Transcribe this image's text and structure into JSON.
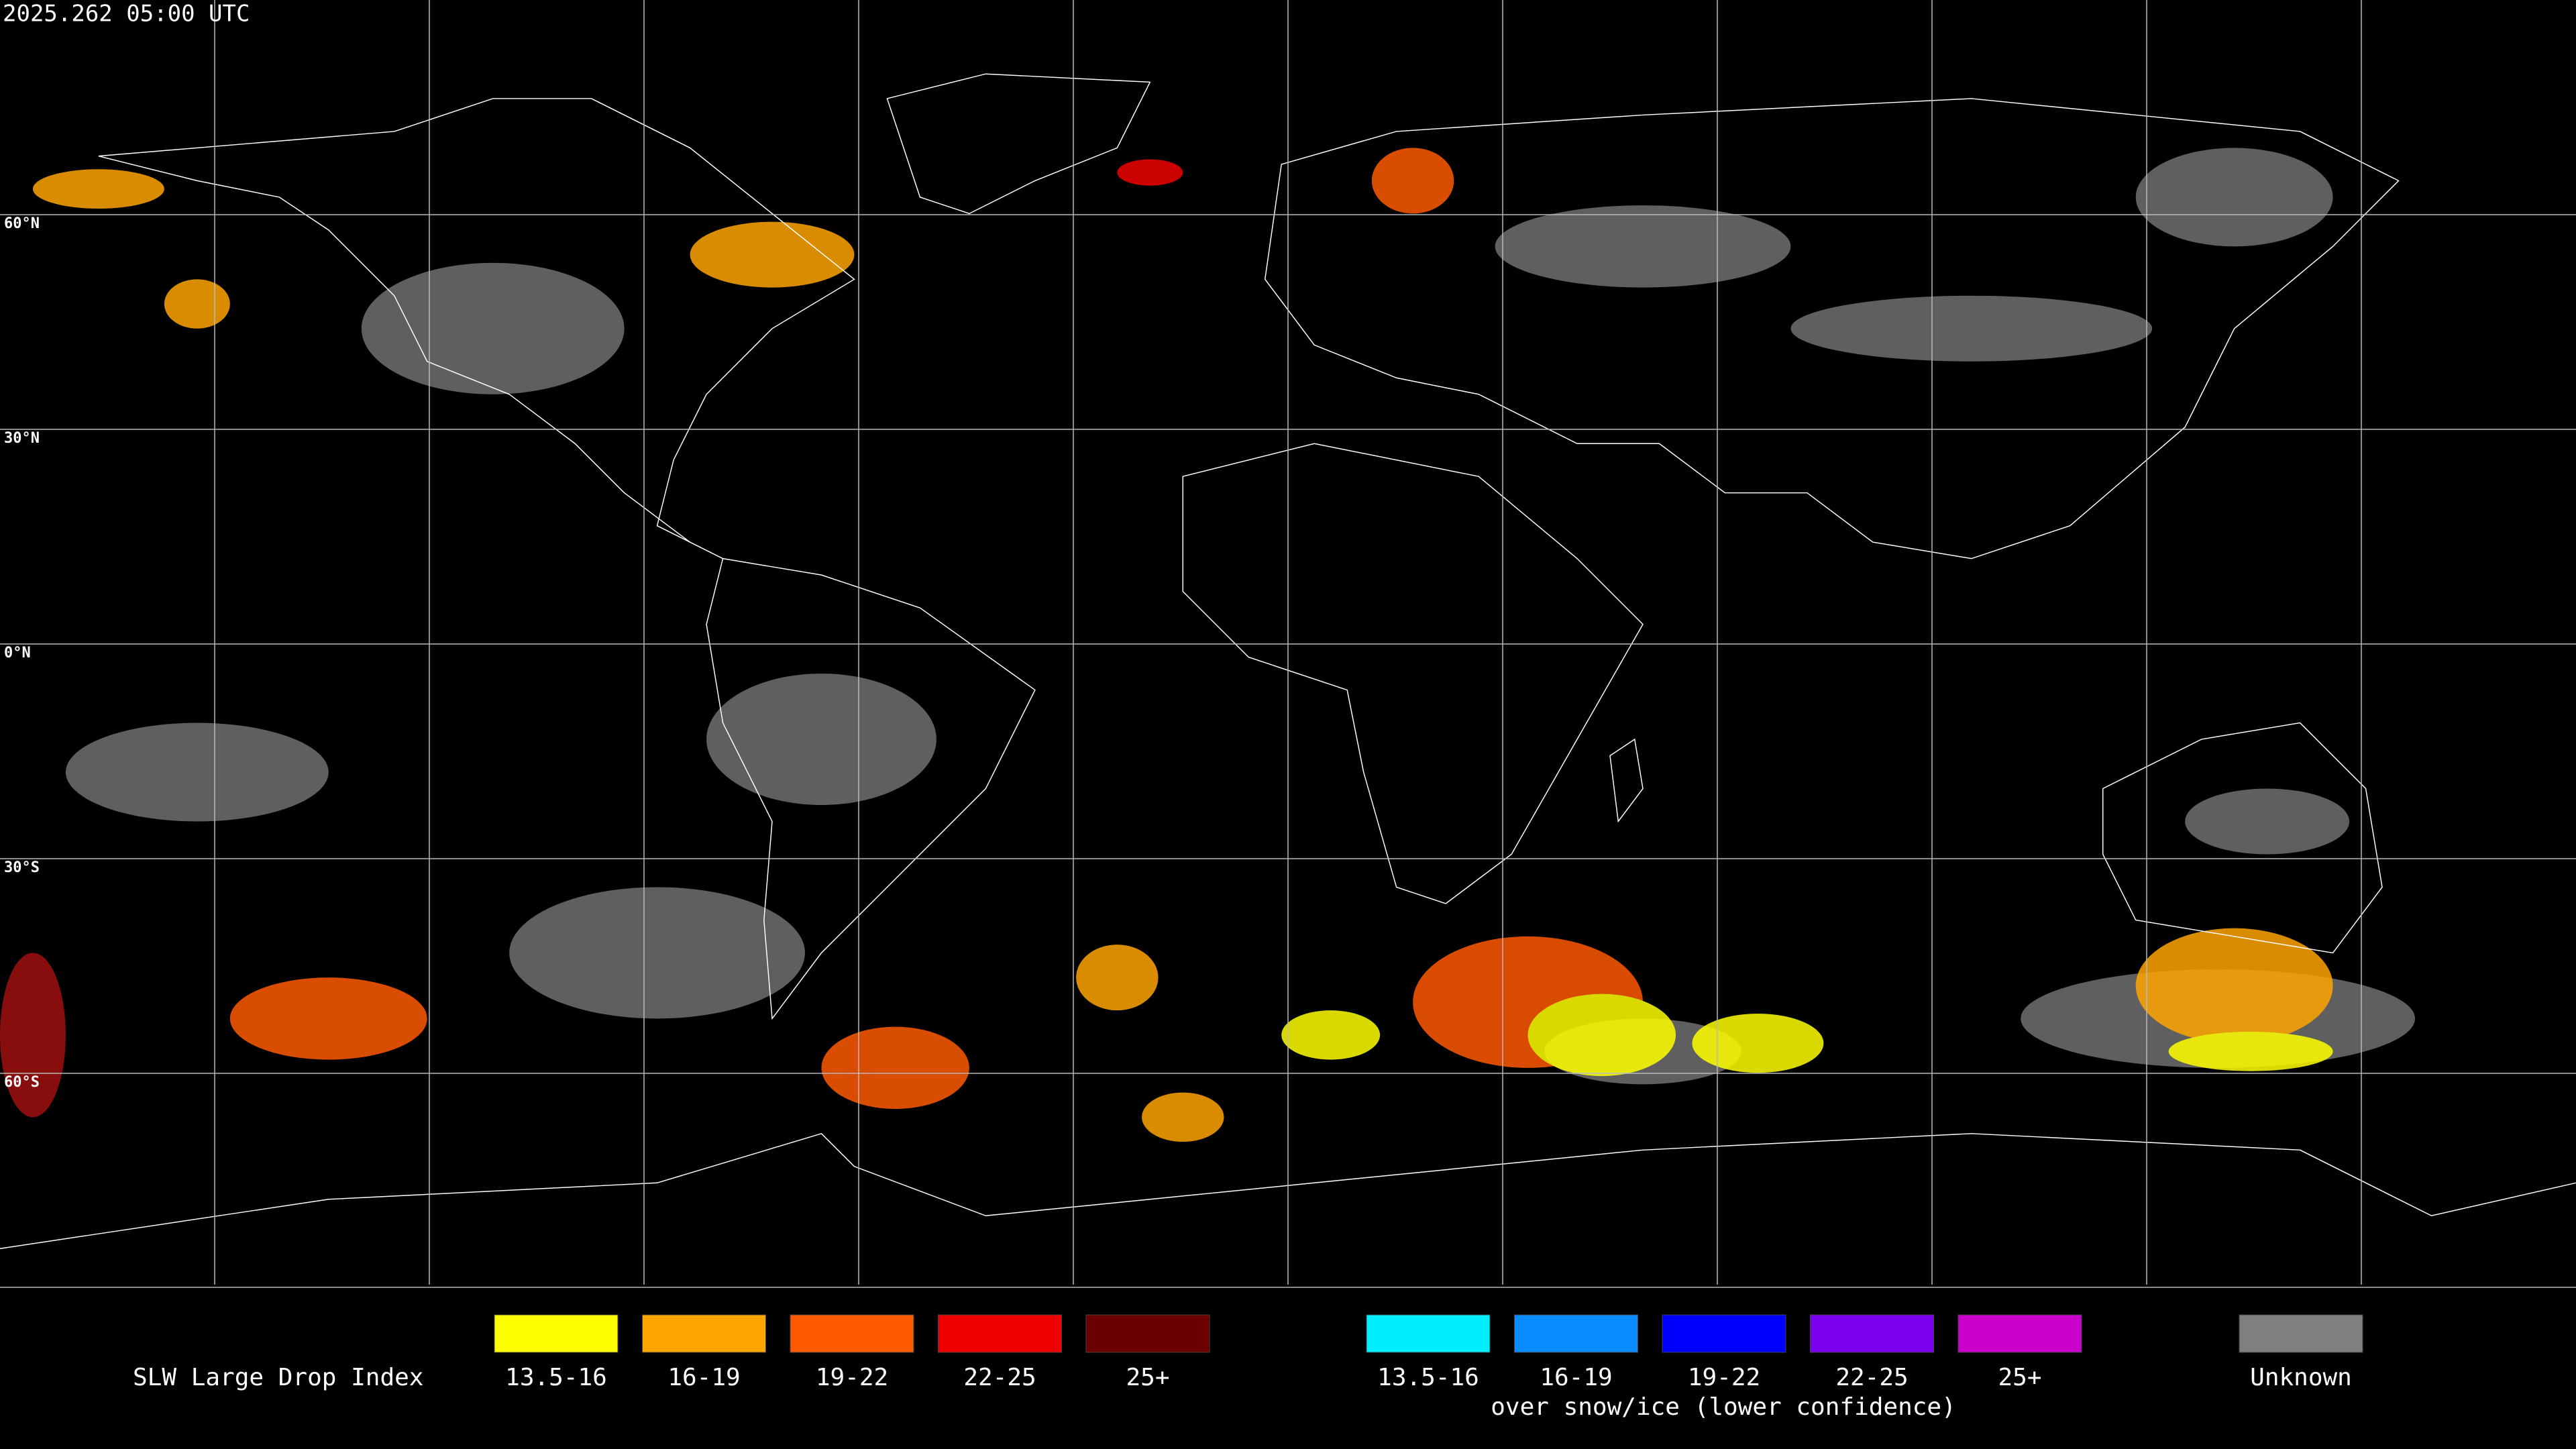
{
  "timestamp": "2025.262 05:00 UTC",
  "map": {
    "lat_labels": [
      "60°N",
      "30°N",
      "0°N",
      "30°S",
      "60°S"
    ]
  },
  "legend": {
    "title": "SLW Large Drop Index",
    "groups": [
      {
        "items": [
          {
            "label": "13.5-16",
            "color": "#ffff00"
          },
          {
            "label": "16-19",
            "color": "#ffa500"
          },
          {
            "label": "19-22",
            "color": "#ff5a00"
          },
          {
            "label": "22-25",
            "color": "#ee0000"
          },
          {
            "label": "25+",
            "color": "#6a0000"
          }
        ]
      },
      {
        "items": [
          {
            "label": "13.5-16",
            "color": "#00eeff"
          },
          {
            "label": "16-19",
            "color": "#0a8cff"
          },
          {
            "label": "19-22",
            "color": "#0000ff"
          },
          {
            "label": "22-25",
            "color": "#7a00ee"
          },
          {
            "label": "25+",
            "color": "#cc00cc"
          }
        ],
        "note": "over snow/ice (lower confidence)"
      }
    ],
    "unknown": {
      "label": "Unknown",
      "color": "#7f7f7f"
    }
  }
}
